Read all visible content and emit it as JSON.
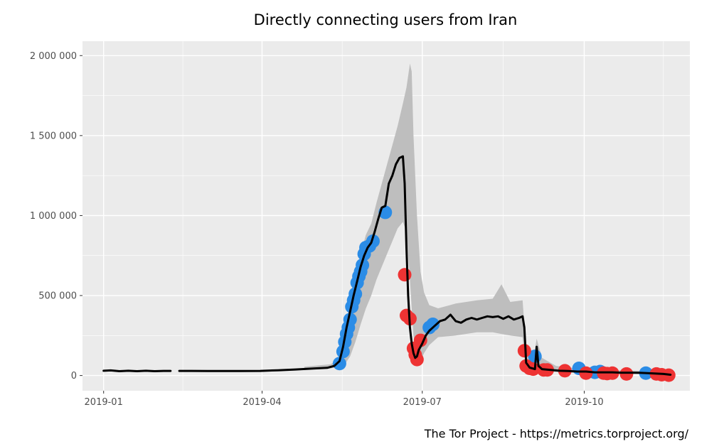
{
  "chart_data": {
    "type": "line",
    "title": "Directly connecting users from Iran",
    "caption": "The Tor Project - https://metrics.torproject.org/",
    "xlabel": "",
    "ylabel": "",
    "x_ticks": [
      "2019-01",
      "2019-04",
      "2019-07",
      "2019-10"
    ],
    "y_ticks": [
      "0",
      "500 000",
      "1 000 000",
      "1 500 000",
      "2 000 000"
    ],
    "y_tick_values": [
      0,
      500000,
      1000000,
      1500000,
      2000000
    ],
    "xlim": [
      "2018-12-20",
      "2019-11-30"
    ],
    "ylim": [
      -95000,
      2090000
    ],
    "grid": true,
    "colors": {
      "panel": "#ebebeb",
      "grid": "#ffffff",
      "line": "#000000",
      "band": "#bebebe",
      "event_up": "#2b8ce6",
      "event_down": "#ee3333"
    },
    "series": [
      {
        "role": "users",
        "segments": [
          [
            [
              "2019-01-01",
              30000
            ],
            [
              "2019-01-05",
              32000
            ],
            [
              "2019-01-10",
              27000
            ],
            [
              "2019-01-15",
              30000
            ],
            [
              "2019-01-20",
              27000
            ],
            [
              "2019-01-25",
              30000
            ],
            [
              "2019-01-30",
              27000
            ],
            [
              "2019-02-04",
              29000
            ],
            [
              "2019-02-08",
              29000
            ]
          ],
          [
            [
              "2019-02-13",
              29000
            ],
            [
              "2019-02-20",
              29000
            ],
            [
              "2019-03-01",
              28000
            ],
            [
              "2019-03-10",
              28000
            ],
            [
              "2019-03-20",
              28000
            ],
            [
              "2019-03-31",
              29000
            ],
            [
              "2019-04-10",
              33000
            ],
            [
              "2019-04-20",
              38000
            ],
            [
              "2019-04-30",
              44000
            ],
            [
              "2019-05-08",
              48000
            ],
            [
              "2019-05-12",
              60000
            ],
            [
              "2019-05-15",
              90000
            ],
            [
              "2019-05-17",
              180000
            ],
            [
              "2019-05-19",
              300000
            ],
            [
              "2019-05-21",
              400000
            ],
            [
              "2019-05-23",
              500000
            ],
            [
              "2019-05-25",
              590000
            ],
            [
              "2019-05-27",
              680000
            ],
            [
              "2019-05-29",
              750000
            ],
            [
              "2019-05-31",
              800000
            ],
            [
              "2019-06-02",
              830000
            ],
            [
              "2019-06-04",
              900000
            ],
            [
              "2019-06-06",
              980000
            ],
            [
              "2019-06-08",
              1050000
            ],
            [
              "2019-06-10",
              1060000
            ],
            [
              "2019-06-12",
              1200000
            ],
            [
              "2019-06-14",
              1250000
            ],
            [
              "2019-06-16",
              1320000
            ],
            [
              "2019-06-18",
              1360000
            ],
            [
              "2019-06-20",
              1370000
            ],
            [
              "2019-06-21",
              1200000
            ],
            [
              "2019-06-22",
              800000
            ],
            [
              "2019-06-23",
              500000
            ],
            [
              "2019-06-24",
              300000
            ],
            [
              "2019-06-25",
              200000
            ],
            [
              "2019-06-26",
              140000
            ],
            [
              "2019-06-27",
              110000
            ],
            [
              "2019-06-28",
              120000
            ],
            [
              "2019-06-29",
              160000
            ],
            [
              "2019-07-01",
              200000
            ],
            [
              "2019-07-03",
              250000
            ],
            [
              "2019-07-05",
              280000
            ],
            [
              "2019-07-08",
              310000
            ],
            [
              "2019-07-11",
              340000
            ],
            [
              "2019-07-14",
              350000
            ],
            [
              "2019-07-17",
              380000
            ],
            [
              "2019-07-20",
              340000
            ],
            [
              "2019-07-23",
              330000
            ],
            [
              "2019-07-26",
              350000
            ],
            [
              "2019-07-29",
              360000
            ],
            [
              "2019-08-01",
              350000
            ],
            [
              "2019-08-04",
              360000
            ],
            [
              "2019-08-07",
              370000
            ],
            [
              "2019-08-10",
              365000
            ],
            [
              "2019-08-13",
              370000
            ],
            [
              "2019-08-16",
              355000
            ],
            [
              "2019-08-19",
              370000
            ],
            [
              "2019-08-22",
              350000
            ],
            [
              "2019-08-25",
              360000
            ],
            [
              "2019-08-27",
              370000
            ],
            [
              "2019-08-28",
              300000
            ],
            [
              "2019-08-29",
              80000
            ],
            [
              "2019-08-31",
              50000
            ],
            [
              "2019-09-03",
              40000
            ],
            [
              "2019-09-04",
              180000
            ],
            [
              "2019-09-05",
              60000
            ],
            [
              "2019-09-07",
              40000
            ],
            [
              "2019-09-12",
              35000
            ],
            [
              "2019-09-17",
              30000
            ],
            [
              "2019-09-22",
              28000
            ],
            [
              "2019-09-27",
              25000
            ],
            [
              "2019-10-02",
              25000
            ],
            [
              "2019-10-07",
              20000
            ],
            [
              "2019-10-12",
              20000
            ],
            [
              "2019-10-17",
              20000
            ],
            [
              "2019-10-22",
              18000
            ],
            [
              "2019-10-27",
              18000
            ],
            [
              "2019-11-01",
              17000
            ],
            [
              "2019-11-06",
              15000
            ],
            [
              "2019-11-11",
              12000
            ],
            [
              "2019-11-15",
              10000
            ],
            [
              "2019-11-19",
              5000
            ]
          ]
        ]
      }
    ],
    "band": [
      [
        "2019-04-25",
        35000,
        55000
      ],
      [
        "2019-05-10",
        45000,
        70000
      ],
      [
        "2019-05-15",
        55000,
        110000
      ],
      [
        "2019-05-18",
        70000,
        260000
      ],
      [
        "2019-05-21",
        120000,
        440000
      ],
      [
        "2019-05-24",
        210000,
        610000
      ],
      [
        "2019-05-27",
        320000,
        760000
      ],
      [
        "2019-05-30",
        420000,
        880000
      ],
      [
        "2019-06-02",
        500000,
        950000
      ],
      [
        "2019-06-05",
        600000,
        1080000
      ],
      [
        "2019-06-08",
        680000,
        1200000
      ],
      [
        "2019-06-11",
        760000,
        1320000
      ],
      [
        "2019-06-14",
        840000,
        1440000
      ],
      [
        "2019-06-17",
        920000,
        1560000
      ],
      [
        "2019-06-20",
        960000,
        1700000
      ],
      [
        "2019-06-22",
        900000,
        1800000
      ],
      [
        "2019-06-24",
        600000,
        1950000
      ],
      [
        "2019-06-25",
        420000,
        1900000
      ],
      [
        "2019-06-26",
        250000,
        1500000
      ],
      [
        "2019-06-28",
        120000,
        1000000
      ],
      [
        "2019-06-30",
        90000,
        650000
      ],
      [
        "2019-07-02",
        140000,
        520000
      ],
      [
        "2019-07-05",
        190000,
        440000
      ],
      [
        "2019-07-10",
        240000,
        420000
      ],
      [
        "2019-07-20",
        250000,
        450000
      ],
      [
        "2019-08-01",
        270000,
        470000
      ],
      [
        "2019-08-10",
        270000,
        480000
      ],
      [
        "2019-08-15",
        260000,
        570000
      ],
      [
        "2019-08-20",
        250000,
        460000
      ],
      [
        "2019-08-27",
        240000,
        470000
      ],
      [
        "2019-08-29",
        40000,
        160000
      ],
      [
        "2019-09-02",
        30000,
        100000
      ],
      [
        "2019-09-04",
        80000,
        230000
      ],
      [
        "2019-09-07",
        30000,
        110000
      ],
      [
        "2019-09-15",
        22000,
        60000
      ],
      [
        "2019-10-01",
        15000,
        40000
      ],
      [
        "2019-11-01",
        10000,
        30000
      ],
      [
        "2019-11-19",
        3000,
        15000
      ]
    ],
    "events_up": [
      [
        "2019-05-15",
        75000
      ],
      [
        "2019-05-17",
        150000
      ],
      [
        "2019-05-18",
        210000
      ],
      [
        "2019-05-19",
        260000
      ],
      [
        "2019-05-20",
        300000
      ],
      [
        "2019-05-21",
        350000
      ],
      [
        "2019-05-22",
        430000
      ],
      [
        "2019-05-23",
        470000
      ],
      [
        "2019-05-24",
        510000
      ],
      [
        "2019-05-25",
        580000
      ],
      [
        "2019-05-26",
        620000
      ],
      [
        "2019-05-27",
        650000
      ],
      [
        "2019-05-28",
        690000
      ],
      [
        "2019-05-29",
        760000
      ],
      [
        "2019-05-30",
        800000
      ],
      [
        "2019-06-01",
        810000
      ],
      [
        "2019-06-03",
        840000
      ],
      [
        "2019-06-10",
        1020000
      ],
      [
        "2019-07-05",
        300000
      ],
      [
        "2019-07-07",
        320000
      ],
      [
        "2019-09-03",
        120000
      ],
      [
        "2019-09-28",
        45000
      ],
      [
        "2019-10-07",
        20000
      ],
      [
        "2019-10-10",
        25000
      ],
      [
        "2019-11-05",
        15000
      ]
    ],
    "events_down": [
      [
        "2019-06-21",
        630000
      ],
      [
        "2019-06-22",
        375000
      ],
      [
        "2019-06-24",
        355000
      ],
      [
        "2019-06-26",
        170000
      ],
      [
        "2019-06-27",
        130000
      ],
      [
        "2019-06-28",
        100000
      ],
      [
        "2019-06-30",
        220000
      ],
      [
        "2019-08-28",
        155000
      ],
      [
        "2019-08-29",
        60000
      ],
      [
        "2019-08-31",
        45000
      ],
      [
        "2019-09-02",
        40000
      ],
      [
        "2019-09-08",
        35000
      ],
      [
        "2019-09-10",
        35000
      ],
      [
        "2019-09-20",
        30000
      ],
      [
        "2019-10-02",
        15000
      ],
      [
        "2019-10-12",
        15000
      ],
      [
        "2019-10-14",
        12000
      ],
      [
        "2019-10-17",
        15000
      ],
      [
        "2019-10-25",
        10000
      ],
      [
        "2019-11-11",
        10000
      ],
      [
        "2019-11-14",
        5000
      ],
      [
        "2019-11-18",
        2000
      ]
    ]
  }
}
